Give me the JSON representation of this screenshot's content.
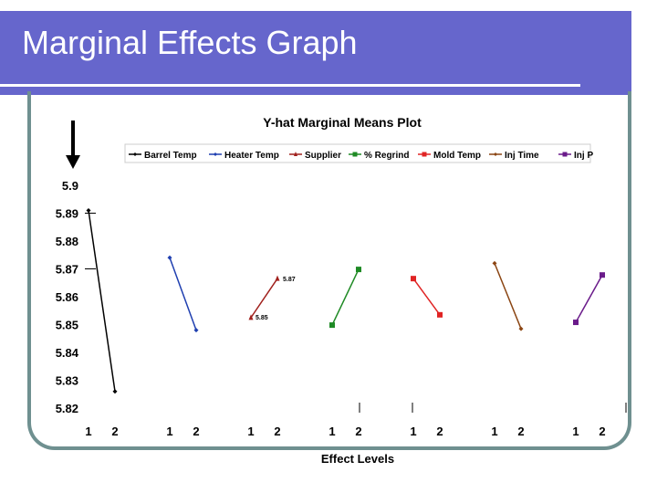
{
  "slide": {
    "title": "Marginal Effects Graph"
  },
  "colors": {
    "band": "#6666cc",
    "frame": "#6f9090"
  },
  "chart_data": {
    "type": "line",
    "title": "Y-hat Marginal Means Plot",
    "xlabel": "Effect Levels",
    "ylabel": "",
    "ylim": [
      5.82,
      5.9
    ],
    "y_ticks": [
      "5.9",
      "5.89",
      "5.88",
      "5.87",
      "5.86",
      "5.85",
      "5.84",
      "5.83",
      "5.82"
    ],
    "categories": [
      "1",
      "2"
    ],
    "legend_position": "top",
    "series": [
      {
        "name": "Barrel Temp",
        "color": "#000000",
        "marker": "diamond",
        "values": [
          5.891,
          5.826
        ]
      },
      {
        "name": "Heater Temp",
        "color": "#1f3fb0",
        "marker": "diamond",
        "values": [
          5.874,
          5.848
        ]
      },
      {
        "name": "Supplier",
        "color": "#a0201c",
        "marker": "triangle",
        "values": [
          5.8525,
          5.8665
        ],
        "labels": [
          "5.85",
          "5.87"
        ]
      },
      {
        "name": "% Regrind",
        "color": "#1e8a24",
        "marker": "square",
        "values": [
          5.8498,
          5.8698
        ]
      },
      {
        "name": "Mold Temp",
        "color": "#e02424",
        "marker": "square",
        "values": [
          5.8665,
          5.8535
        ]
      },
      {
        "name": "Inj Time",
        "color": "#8b4513",
        "marker": "diamond",
        "values": [
          5.872,
          5.8485
        ]
      },
      {
        "name": "Inj P",
        "color": "#6a1b8a",
        "marker": "square",
        "values": [
          5.8508,
          5.8678
        ]
      }
    ]
  }
}
